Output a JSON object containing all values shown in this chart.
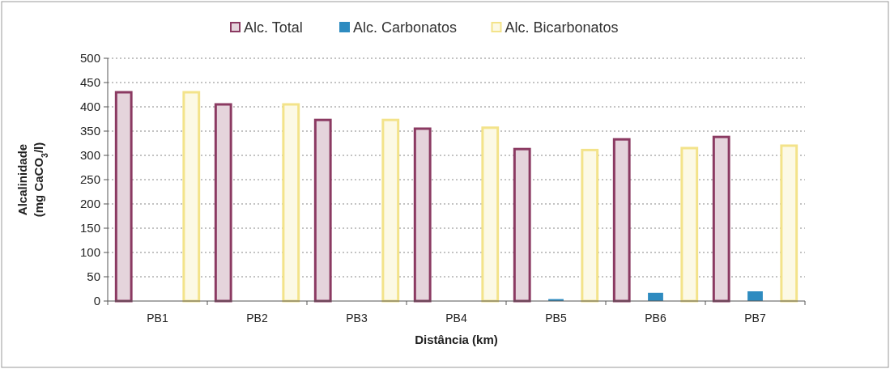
{
  "chart_data": {
    "type": "bar",
    "xlabel": "Distância (km)",
    "ylabel": "Alcalinidade\n(mg CaCO$_{3}$/l)",
    "categories": [
      "PB1",
      "PB2",
      "PB3",
      "PB4",
      "PB5",
      "PB6",
      "PB7"
    ],
    "series": [
      {
        "name": "Alc. Total",
        "color": "#8b3a62",
        "values": [
          430,
          405,
          373,
          355,
          313,
          333,
          338
        ]
      },
      {
        "name": "Alc. Carbonatos",
        "color": "#2e8bc0",
        "values": [
          0,
          0,
          0,
          0,
          4,
          17,
          20
        ]
      },
      {
        "name": "Alc. Bicarbonatos",
        "color": "#f3e38a",
        "values": [
          430,
          405,
          373,
          357,
          311,
          315,
          320
        ]
      }
    ],
    "ylim": [
      0,
      500
    ],
    "yticks": [
      0,
      50,
      100,
      150,
      200,
      250,
      300,
      350,
      400,
      450,
      500
    ],
    "grid": "y",
    "legend": "top"
  }
}
